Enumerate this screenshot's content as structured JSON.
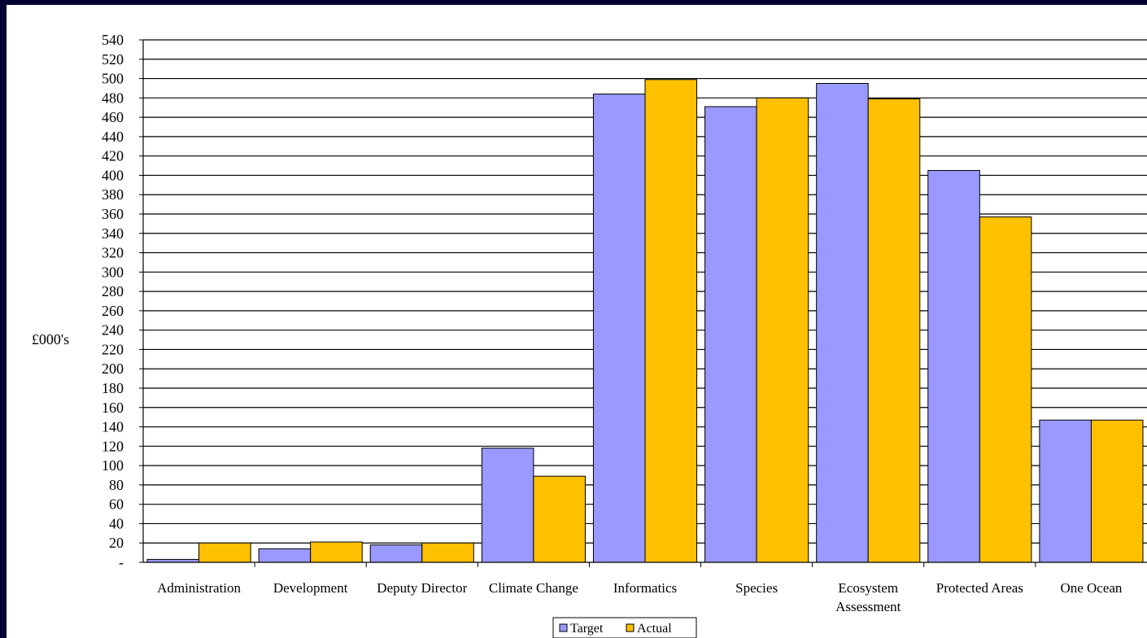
{
  "chart_data": {
    "type": "bar",
    "title": "",
    "xlabel": "",
    "ylabel": "£000's",
    "ylim": [
      0,
      540
    ],
    "ytick_step": 20,
    "yticks": [
      "-",
      "20",
      "40",
      "60",
      "80",
      "100",
      "120",
      "140",
      "160",
      "180",
      "200",
      "220",
      "240",
      "260",
      "280",
      "300",
      "320",
      "340",
      "360",
      "380",
      "400",
      "420",
      "440",
      "460",
      "480",
      "500",
      "520",
      "540"
    ],
    "grid": true,
    "legend_position": "bottom",
    "categories": [
      [
        "Administration"
      ],
      [
        "Development"
      ],
      [
        "Deputy Director"
      ],
      [
        "Climate Change"
      ],
      [
        "Informatics"
      ],
      [
        "Species"
      ],
      [
        "Ecosystem",
        "Assessment"
      ],
      [
        "Protected Areas"
      ],
      [
        "One Ocean"
      ]
    ],
    "series": [
      {
        "name": "Target",
        "color": "#9999ff",
        "values": [
          3,
          14,
          18,
          118,
          484,
          471,
          495,
          405,
          147
        ]
      },
      {
        "name": "Actual",
        "color": "#ffc000",
        "values": [
          20,
          21,
          20,
          89,
          499,
          480,
          479,
          357,
          147
        ]
      }
    ]
  }
}
